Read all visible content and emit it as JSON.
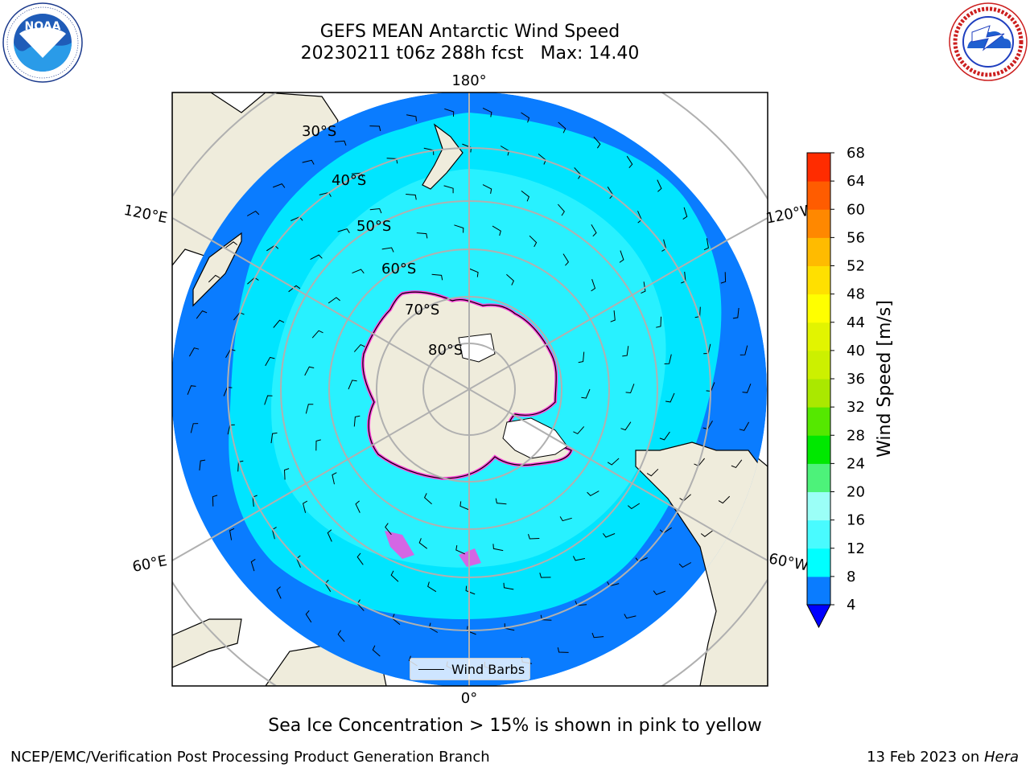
{
  "title": {
    "line1": "GEFS MEAN Antarctic Wind Speed",
    "line2": "20230211 t06z 288h fcst   Max: 14.40"
  },
  "logos": {
    "left": {
      "name": "NOAA",
      "icon": "noaa-logo",
      "ring_text": "NATIONAL OCEANIC AND ATMOSPHERIC ADMINISTRATION · U.S. DEPARTMENT OF COMMERCE"
    },
    "right": {
      "name": "NATIONAL WEATHER SERVICE",
      "icon": "nws-logo"
    }
  },
  "map": {
    "projection": "south-polar-stereographic",
    "lon_labels": {
      "top": "180°",
      "bottom": "0°",
      "upper_left": "120°E",
      "upper_right": "120°W",
      "lower_left": "60°E",
      "lower_right": "60°W"
    },
    "lat_labels": [
      "30°S",
      "40°S",
      "50°S",
      "60°S",
      "70°S",
      "80°S"
    ],
    "colors": {
      "ocean_4_8": "#0a7cff",
      "ocean_8_12": "#00e5ff",
      "ocean_12_16": "#49fbff",
      "land": "#efecdc",
      "ice_edge": "#ff44dd",
      "gridline": "#b0b0b0"
    }
  },
  "legend": {
    "label": "Wind Barbs"
  },
  "colorbar": {
    "label": "Wind Speed [m/s]",
    "ticks": [
      "4",
      "8",
      "12",
      "16",
      "20",
      "24",
      "28",
      "32",
      "36",
      "40",
      "44",
      "48",
      "52",
      "56",
      "60",
      "64",
      "68"
    ],
    "colors": [
      "#0a7cff",
      "#00ffff",
      "#49fbff",
      "#9bfff7",
      "#4df27a",
      "#00e800",
      "#55e800",
      "#aae800",
      "#ccf000",
      "#e2f400",
      "#ffff00",
      "#ffe000",
      "#ffbb00",
      "#ff8800",
      "#ff5c00",
      "#ff2c00",
      "#ff0000"
    ],
    "extend_color": "#0000ff"
  },
  "note": "Sea Ice Concentration > 15% is shown in pink to yellow",
  "footer": {
    "left": "NCEP/EMC/Verification Post Processing Product Generation Branch",
    "right_prefix": "13 Feb 2023 on ",
    "right_host": "Hera"
  }
}
